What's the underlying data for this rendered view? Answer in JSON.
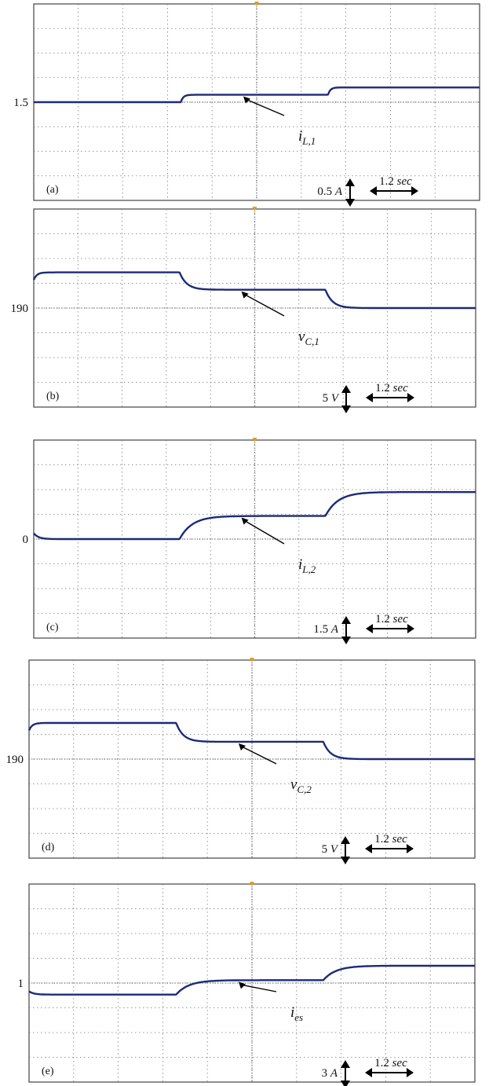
{
  "colors": {
    "trace": "#1d2a78",
    "grid": "#7a7a7a",
    "frame": "#444444",
    "marker": "#e0a020"
  },
  "chart_data": [
    {
      "type": "line",
      "panel_label": "(a)",
      "level_label": "1.5",
      "trace_label": {
        "main": "i",
        "sub": "L,1"
      },
      "amp_scale": {
        "value": "0.5",
        "unit": "A"
      },
      "time_scale": {
        "value": "1.2",
        "unit": "sec"
      },
      "y_per_div": 0.5,
      "y_ref": 1.5,
      "steps": [
        1.5,
        1.65,
        1.8
      ],
      "step_times_div": [
        3.3,
        6.6
      ],
      "settle": "fast"
    },
    {
      "type": "line",
      "panel_label": "(b)",
      "level_label": "190",
      "trace_label": {
        "main": "v",
        "sub": "C,1"
      },
      "amp_scale": {
        "value": "5",
        "unit": "V"
      },
      "time_scale": {
        "value": "1.2",
        "unit": "sec"
      },
      "y_per_div": 5,
      "y_ref": 190,
      "steps": [
        197.2,
        193.7,
        190
      ],
      "step_times_div": [
        3.3,
        6.6
      ],
      "settle": "medium"
    },
    {
      "type": "line",
      "panel_label": "(c)",
      "level_label": "0",
      "trace_label": {
        "main": "i",
        "sub": "L,2"
      },
      "amp_scale": {
        "value": "1.5",
        "unit": "A"
      },
      "time_scale": {
        "value": "1.2",
        "unit": "sec"
      },
      "y_per_div": 1.5,
      "y_ref": 0,
      "steps": [
        0,
        1.4,
        2.85
      ],
      "step_times_div": [
        3.3,
        6.6
      ],
      "settle": "slow"
    },
    {
      "type": "line",
      "panel_label": "(d)",
      "level_label": "190",
      "trace_label": {
        "main": "v",
        "sub": "C,2"
      },
      "amp_scale": {
        "value": "5",
        "unit": "V"
      },
      "time_scale": {
        "value": "1.2",
        "unit": "sec"
      },
      "y_per_div": 5,
      "y_ref": 190,
      "steps": [
        197.3,
        193.5,
        190
      ],
      "step_times_div": [
        3.3,
        6.6
      ],
      "settle": "medium"
    },
    {
      "type": "line",
      "panel_label": "(e)",
      "level_label": "1",
      "trace_label": {
        "main": "i",
        "sub": "es"
      },
      "amp_scale": {
        "value": "3",
        "unit": "A"
      },
      "time_scale": {
        "value": "1.2",
        "unit": "sec"
      },
      "y_per_div": 3,
      "y_ref": 1,
      "steps": [
        -0.4,
        1.35,
        3.1
      ],
      "step_times_div": [
        3.3,
        6.6
      ],
      "settle": "slow"
    }
  ]
}
